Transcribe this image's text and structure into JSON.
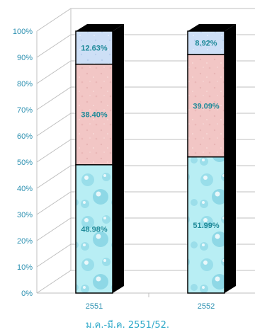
{
  "chart_data": {
    "type": "bar",
    "stacked": true,
    "percent": true,
    "categories": [
      "2551",
      "2552"
    ],
    "series": [
      {
        "values": [
          48.98,
          51.99
        ],
        "labels": [
          "48.98%",
          "51.99%"
        ],
        "fill": "water-bubbles",
        "color": "#a8e6ee"
      },
      {
        "values": [
          38.4,
          39.09
        ],
        "labels": [
          "38.40%",
          "39.09%"
        ],
        "fill": "pink-texture",
        "color": "#f1c4c2"
      },
      {
        "values": [
          12.63,
          8.92
        ],
        "labels": [
          "12.63%",
          "8.92%"
        ],
        "fill": "blue-texture",
        "color": "#c9dcf4"
      }
    ],
    "y_ticks": [
      "0%",
      "10%",
      "20%",
      "30%",
      "40%",
      "50%",
      "60%",
      "70%",
      "80%",
      "90%",
      "100%"
    ],
    "ylim": [
      0,
      100
    ],
    "grid": true,
    "legend": "none",
    "title": "",
    "xlabel": "ม.ค.-มี.ค. 2551/52.",
    "ylabel": ""
  },
  "colors": {
    "tick_label": "#2a8fb0",
    "data_label": "#1f8a99",
    "caption": "#2aa7c8",
    "grid": "#bfbfbf",
    "bar_shadow": "#000000"
  }
}
